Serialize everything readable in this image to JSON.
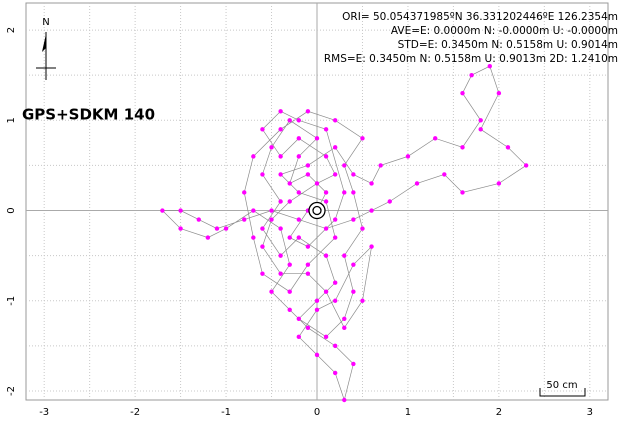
{
  "chart_data": {
    "type": "scatter",
    "title": "GPS+SDKM 140",
    "annotations": [
      "ORI= 50.054371985ºN  36.331202446ºE 126.2354m",
      "AVE=E: 0.0000m N: -0.0000m U: -0.0000m",
      "STD=E: 0.3450m N: 0.5158m U: 0.9014m",
      "RMS=E: 0.3450m N: 0.5158m U: 0.9013m 2D: 1.2410m"
    ],
    "north_label": "N",
    "scale_label": "50 cm",
    "color": "#ff00ff",
    "line_color": "#8c8c8c",
    "grid": true,
    "xlim": [
      -3.2,
      3.2
    ],
    "ylim": [
      -2.1,
      2.3
    ],
    "xticks": [
      -3,
      -2,
      -1,
      0,
      1,
      2,
      3
    ],
    "yticks": [
      -2,
      -1,
      0,
      1,
      2
    ],
    "x": [
      0,
      0.1,
      -0.1,
      -0.3,
      -0.2,
      0,
      -0.3,
      -0.5,
      -0.6,
      -0.4,
      -0.6,
      -0.4,
      -0.2,
      0.1,
      0.2,
      0,
      -0.2,
      0.1,
      0.3,
      0.4,
      0.3,
      0.5,
      0.4,
      0.3,
      0.5,
      0.2,
      -0.1,
      -0.4,
      -0.7,
      -0.8,
      -0.7,
      -0.6,
      -0.3,
      -0.1,
      0.2,
      0.1,
      -0.2,
      -0.4,
      -0.1,
      0.2,
      0.4,
      0.6,
      0.7,
      1.0,
      1.3,
      1.6,
      1.8,
      1.6,
      1.7,
      1.9,
      2.0,
      1.8,
      2.1,
      2.3,
      2.0,
      1.6,
      1.4,
      1.1,
      0.8,
      0.6,
      0.4,
      0.1,
      -0.2,
      -0.5,
      -0.8,
      -1.1,
      -1.3,
      -1.5,
      -1.7,
      -1.5,
      -1.2,
      -1.0,
      -0.7,
      -0.4,
      -0.3,
      -0.5,
      -0.3,
      -0.1,
      0.2,
      0.4,
      0.3,
      0.2,
      0,
      -0.2,
      0,
      0.2,
      0.4,
      0.6,
      0.5,
      0.3,
      0.1,
      -0.1,
      -0.4,
      -0.6,
      -0.5,
      -0.3,
      0,
      0.2,
      0.1,
      -0.2,
      -0.4,
      -0.6,
      -0.4,
      -0.2,
      0.1,
      0.3,
      0.2,
      -0.1,
      -0.3,
      -0.1,
      0
    ],
    "values": [
      0,
      0.2,
      0.4,
      0.3,
      0.6,
      0.8,
      1.0,
      0.7,
      0.4,
      0.1,
      -0.2,
      -0.5,
      -0.3,
      -0.5,
      -0.8,
      -1.0,
      -1.2,
      -1.4,
      -1.2,
      -0.9,
      -0.5,
      -0.2,
      0.2,
      0.5,
      0.8,
      1.0,
      1.1,
      0.9,
      0.6,
      0.2,
      -0.3,
      -0.7,
      -0.9,
      -0.6,
      -0.3,
      0.1,
      0.2,
      0.4,
      0.5,
      0.7,
      0.4,
      0.3,
      0.5,
      0.6,
      0.8,
      0.7,
      1.0,
      1.3,
      1.5,
      1.6,
      1.3,
      0.9,
      0.7,
      0.5,
      0.3,
      0.2,
      0.4,
      0.3,
      0.1,
      0,
      -0.1,
      -0.2,
      -0.1,
      0,
      -0.1,
      -0.2,
      -0.1,
      0,
      0,
      -0.2,
      -0.3,
      -0.2,
      0,
      -0.2,
      -0.6,
      -0.9,
      -1.1,
      -1.3,
      -1.5,
      -1.7,
      -2.1,
      -1.8,
      -1.6,
      -1.4,
      -1.1,
      -1.0,
      -0.6,
      -0.4,
      -1.0,
      -1.3,
      -0.9,
      -0.7,
      -0.7,
      -0.4,
      -0.1,
      0.1,
      0.3,
      0.4,
      0.6,
      0.8,
      0.6,
      0.9,
      1.1,
      1.0,
      0.9,
      0.2,
      -0.1,
      -0.4,
      -0.3,
      0,
      0
    ]
  }
}
